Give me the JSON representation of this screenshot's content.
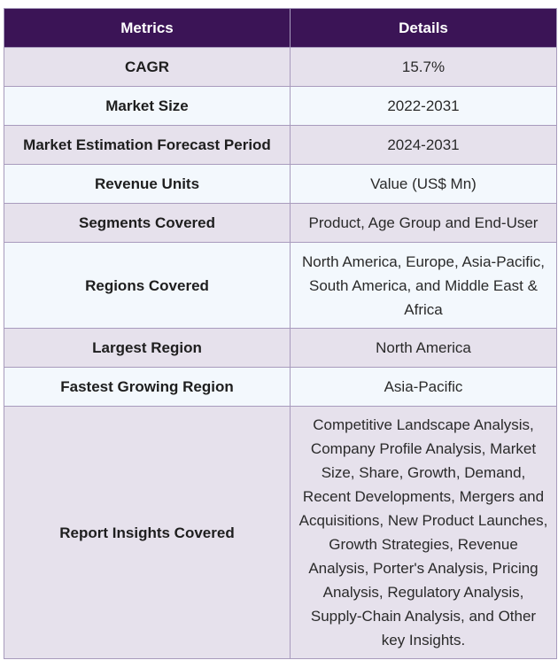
{
  "table": {
    "headers": [
      "Metrics",
      "Details"
    ],
    "rows": [
      {
        "metric": "CAGR",
        "detail": "15.7%"
      },
      {
        "metric": "Market Size",
        "detail": "2022-2031"
      },
      {
        "metric": "Market Estimation Forecast Period",
        "detail": "2024-2031"
      },
      {
        "metric": "Revenue Units",
        "detail": "Value (US$ Mn)"
      },
      {
        "metric": "Segments Covered",
        "detail": "Product, Age Group and End-User"
      },
      {
        "metric": "Regions Covered",
        "detail": "North America, Europe, Asia-Pacific, South America, and Middle East & Africa"
      },
      {
        "metric": "Largest Region",
        "detail": "North America"
      },
      {
        "metric": "Fastest Growing Region",
        "detail": "Asia-Pacific"
      },
      {
        "metric": "Report Insights Covered",
        "detail": "Competitive Landscape Analysis, Company Profile Analysis, Market Size, Share, Growth, Demand, Recent Developments, Mergers and Acquisitions, New Product Launches, Growth Strategies, Revenue Analysis, Porter's Analysis, Pricing Analysis, Regulatory Analysis, Supply-Chain Analysis, and Other key Insights."
      }
    ]
  },
  "colors": {
    "header_bg": "#3b1456",
    "odd_row_bg": "#e6e1ec",
    "even_row_bg": "#f3f8fd",
    "border": "#a89bbd"
  }
}
